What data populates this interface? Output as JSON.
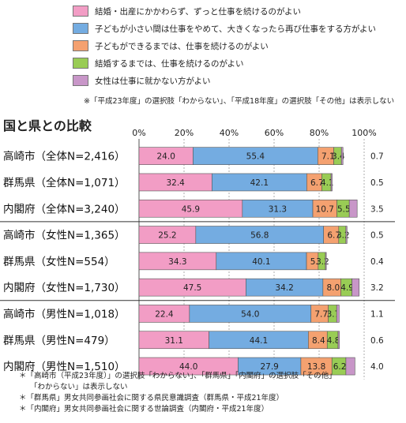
{
  "legend": {
    "items": [
      {
        "label": "結婚・出産にかかわらず、ずっと仕事を続けるのがよい",
        "color": "#f29dc5"
      },
      {
        "label": "子どもが小さい間は仕事をやめて、大きくなったら再び仕事をする方がよい",
        "color": "#74ace1"
      },
      {
        "label": "子どもができるまでは、仕事を続けるのがよい",
        "color": "#f4a170"
      },
      {
        "label": "結婚するまでは、仕事を続けるのがよい",
        "color": "#99cc55"
      },
      {
        "label": "女性は仕事に就かない方がよい",
        "color": "#c896c8"
      }
    ],
    "note": "※「平成23年度」の選択肢「わからない」、「平成18年度」の選択肢「その他」は表示しない"
  },
  "chart_title": "国と県との比較",
  "chart_data": {
    "type": "bar",
    "orientation": "horizontal",
    "stacked": true,
    "xlim": [
      0,
      100
    ],
    "x_ticks": [
      "0%",
      "20%",
      "40%",
      "60%",
      "80%",
      "100%"
    ],
    "categories": [
      "高崎市（全体N=2,416）",
      "群馬県（全体N=1,071）",
      "内閣府（全体N=3,240）",
      "高崎市（女性N=1,365）",
      "群馬県（女性N=554）",
      "内閣府（女性N=1,730）",
      "高崎市（男性N=1,018）",
      "群馬県（男性N=479）",
      "内閣府（男性N=1,510）"
    ],
    "group_separators_after": [
      2,
      5
    ],
    "series": [
      {
        "name": "結婚・出産にかかわらず、ずっと仕事を続けるのがよい",
        "color": "#f29dc5",
        "values": [
          24.0,
          32.4,
          45.9,
          25.2,
          34.3,
          47.5,
          22.4,
          31.1,
          44.0
        ]
      },
      {
        "name": "子どもが小さい間は仕事をやめて、大きくなったら再び仕事をする方がよい",
        "color": "#74ace1",
        "values": [
          55.4,
          42.1,
          31.3,
          56.8,
          40.1,
          34.2,
          54.0,
          44.1,
          27.9
        ]
      },
      {
        "name": "子どもができるまでは、仕事を続けるのがよい",
        "color": "#f4a170",
        "values": [
          7.1,
          6.7,
          10.7,
          6.7,
          5.2,
          8.0,
          7.7,
          8.4,
          13.8
        ]
      },
      {
        "name": "結婚するまでは、仕事を続けるのがよい",
        "color": "#99cc55",
        "values": [
          3.4,
          4.1,
          5.5,
          3.2,
          3.2,
          4.9,
          3.7,
          4.8,
          6.2
        ]
      },
      {
        "name": "女性は仕事に就かない方がよい",
        "color": "#c896c8",
        "values": [
          0.7,
          0.5,
          3.5,
          0.5,
          0.4,
          3.2,
          1.1,
          0.6,
          4.0
        ]
      }
    ]
  },
  "footnotes": [
    "＊「高崎市（平成23年度）」の選択肢「わからない」、「群馬県」「内閣府」の選択肢「その他」",
    "「わからない」は表示しない",
    "＊「群馬県」男女共同参画社会に関する県民意識調査（群馬県・平成21年度）",
    "＊「内閣府」男女共同参画社会に関する世論調査（内閣府・平成21年度）"
  ]
}
